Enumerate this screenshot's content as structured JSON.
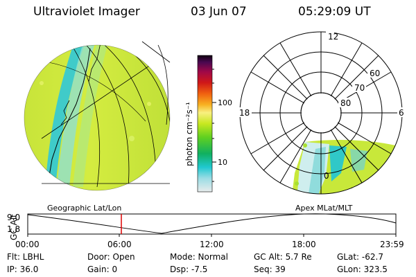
{
  "header": {
    "title": "Ultraviolet Imager",
    "date": "03 Jun 07",
    "time": "05:29:09 UT"
  },
  "colorbar": {
    "unit_label": "photon cm⁻²s⁻¹",
    "tick_labels": [
      "100",
      "10"
    ]
  },
  "polar": {
    "mlt_labels": {
      "top": "12",
      "left": "18",
      "right": "6",
      "bottom": "0"
    },
    "lat_labels": [
      "60",
      "70",
      "80"
    ]
  },
  "panels": {
    "geo_label": "Geographic Lat/Lon",
    "apex_label": "Apex MLat/MLT"
  },
  "altplot": {
    "axis_label": "GC Alt",
    "y_labels": [
      "9.0",
      "1.8"
    ],
    "x_labels": [
      "00:00",
      "06:00",
      "12:00",
      "18:00",
      "23:59"
    ]
  },
  "status": {
    "flt": "Flt: LBHL",
    "ip": "IP: 36.0",
    "door": "Door: Open",
    "gain": "Gain:   0",
    "mode": "Mode: Normal",
    "dsp": "Dsp:    -7.5",
    "gcalt": "GC Alt: 5.7 Re",
    "seq": "Seq: 39",
    "glat": "GLat:  -62.7",
    "glon": "GLon: 323.5"
  },
  "colors": {
    "accent_marker": "#dd0000",
    "surface_low": "#c8e83a",
    "surface_high": "#18c8d8"
  }
}
